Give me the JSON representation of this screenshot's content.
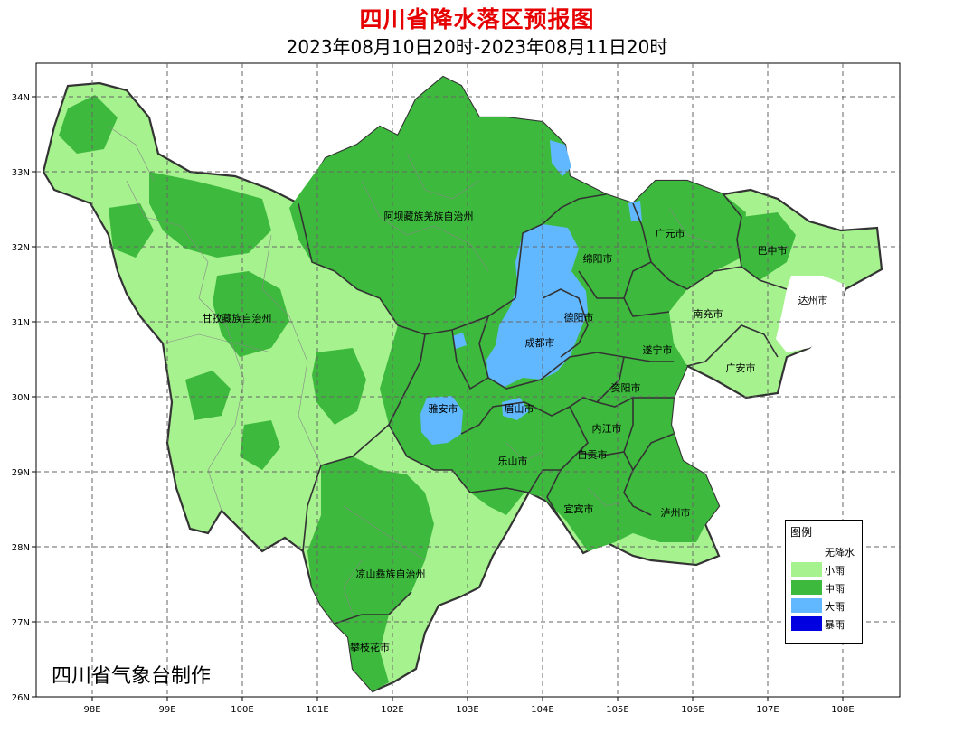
{
  "title": "四川省降水落区预报图",
  "subtitle": "2023年08月10日20时-2023年08月11日20时",
  "credit": "四川省气象台制作",
  "axes": {
    "lon_labels": [
      "98E",
      "99E",
      "100E",
      "101E",
      "102E",
      "103E",
      "104E",
      "105E",
      "106E",
      "107E",
      "108E"
    ],
    "lat_labels": [
      "34N",
      "33N",
      "32N",
      "31N",
      "30N",
      "29N",
      "28N",
      "27N",
      "26N"
    ]
  },
  "legend": {
    "title": "图例",
    "items": [
      {
        "label": "无降水",
        "color": "#ffffff"
      },
      {
        "label": "小雨",
        "color": "#a6f28f"
      },
      {
        "label": "中雨",
        "color": "#3dba3d"
      },
      {
        "label": "大雨",
        "color": "#61b8ff"
      },
      {
        "label": "暴雨",
        "color": "#0000e1"
      }
    ]
  },
  "regions": [
    {
      "name": "阿坝藏族羌族自治州"
    },
    {
      "name": "甘孜藏族自治州"
    },
    {
      "name": "凉山彝族自治州"
    },
    {
      "name": "攀枝花市"
    },
    {
      "name": "广元市"
    },
    {
      "name": "巴中市"
    },
    {
      "name": "绵阳市"
    },
    {
      "name": "达州市"
    },
    {
      "name": "德阳市"
    },
    {
      "name": "南充市"
    },
    {
      "name": "成都市"
    },
    {
      "name": "遂宁市"
    },
    {
      "name": "广安市"
    },
    {
      "name": "资阳市"
    },
    {
      "name": "雅安市"
    },
    {
      "name": "眉山市"
    },
    {
      "name": "内江市"
    },
    {
      "name": "乐山市"
    },
    {
      "name": "自贡市"
    },
    {
      "name": "宜宾市"
    },
    {
      "name": "泸州市"
    }
  ]
}
